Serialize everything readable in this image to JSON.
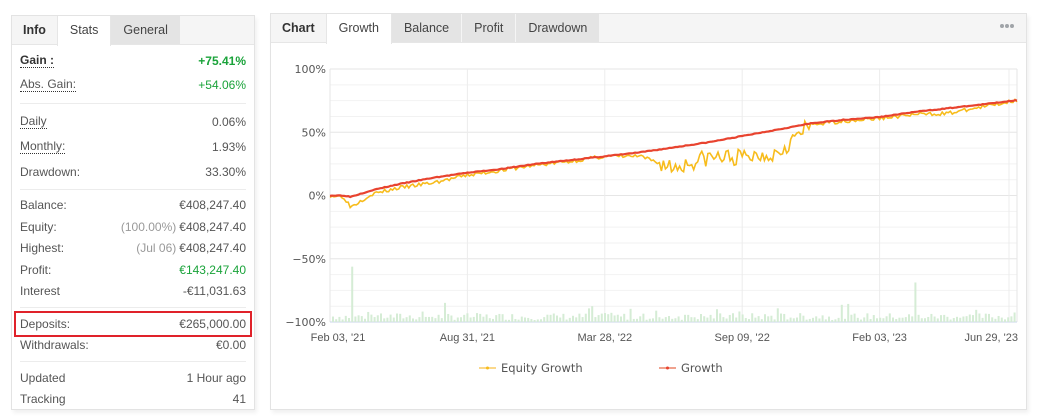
{
  "left_panel": {
    "tabs": [
      {
        "label": "Info",
        "active": false
      },
      {
        "label": "Stats",
        "active": true
      },
      {
        "label": "General",
        "active": false
      }
    ],
    "gain": {
      "label": "Gain :",
      "value": "+75.41%"
    },
    "abs_gain": {
      "label": "Abs. Gain:",
      "value": "+54.06%"
    },
    "daily": {
      "label": "Daily",
      "value": "0.06%"
    },
    "monthly": {
      "label": "Monthly:",
      "value": "1.93%"
    },
    "drawdown": {
      "label": "Drawdown:",
      "value": "33.30%"
    },
    "balance": {
      "label": "Balance:",
      "value": "€408,247.40"
    },
    "equity": {
      "label": "Equity:",
      "note": "(100.00%)",
      "value": "€408,247.40"
    },
    "highest": {
      "label": "Highest:",
      "note": "(Jul 06)",
      "value": "€408,247.40"
    },
    "profit": {
      "label": "Profit:",
      "value": "€143,247.40"
    },
    "interest": {
      "label": "Interest",
      "value": "-€11,031.63"
    },
    "deposits": {
      "label": "Deposits:",
      "value": "€265,000.00"
    },
    "withdrawals": {
      "label": "Withdrawals:",
      "value": "€0.00"
    },
    "updated": {
      "label": "Updated",
      "value": "1 Hour ago"
    },
    "tracking": {
      "label": "Tracking",
      "value": "41"
    }
  },
  "right_panel": {
    "tabs": [
      {
        "label": "Chart",
        "active": false
      },
      {
        "label": "Growth",
        "active": true
      },
      {
        "label": "Balance",
        "active": false
      },
      {
        "label": "Profit",
        "active": false
      },
      {
        "label": "Drawdown",
        "active": false
      }
    ],
    "more_icon": "more-horizontal-icon"
  },
  "colors": {
    "growth": "#e8432f",
    "equity_growth": "#f7bc1c",
    "volume_bars": "#d5ecd5",
    "positive": "#1aa33a",
    "highlight_box": "#e0222a"
  },
  "chart_data": {
    "type": "line",
    "title": "",
    "xlabel": "",
    "ylabel": "",
    "ylim": [
      -100,
      100
    ],
    "yticks": [
      "100%",
      "50%",
      "0%",
      "−50%",
      "−100%"
    ],
    "ytick_values": [
      100,
      50,
      0,
      -50,
      -100
    ],
    "xticks": [
      "Feb 03, '21",
      "Aug 31, '21",
      "Mar 28, '22",
      "Sep 09, '22",
      "Feb 03, '23",
      "Jun 29, '23"
    ],
    "grid": true,
    "legend": {
      "position": "bottom",
      "entries": [
        "Equity Growth",
        "Growth"
      ]
    },
    "x": [
      0,
      0.02,
      0.03,
      0.06,
      0.1,
      0.15,
      0.2,
      0.25,
      0.3,
      0.35,
      0.4,
      0.45,
      0.5,
      0.55,
      0.6,
      0.65,
      0.7,
      0.75,
      0.8,
      0.85,
      0.9,
      0.95,
      1.0
    ],
    "series": [
      {
        "name": "Growth",
        "values": [
          0,
          0,
          -1,
          4,
          9,
          14,
          18,
          21,
          25,
          28,
          31,
          34,
          38,
          42,
          47,
          52,
          57,
          60,
          62,
          66,
          69,
          72,
          75.41
        ]
      },
      {
        "name": "Equity Growth",
        "values": [
          0,
          -1,
          -9,
          1,
          6,
          10,
          16,
          20,
          24,
          27,
          31,
          31,
          22,
          30,
          30,
          34,
          56,
          59,
          61,
          64,
          65,
          70,
          75.41
        ]
      }
    ],
    "bars": {
      "name": "Daily volume (unlabeled)",
      "baseline": -100,
      "typical_height": 8,
      "peaks": [
        {
          "x": 0.03,
          "height": 35
        },
        {
          "x": 0.85,
          "height": 25
        }
      ]
    }
  }
}
